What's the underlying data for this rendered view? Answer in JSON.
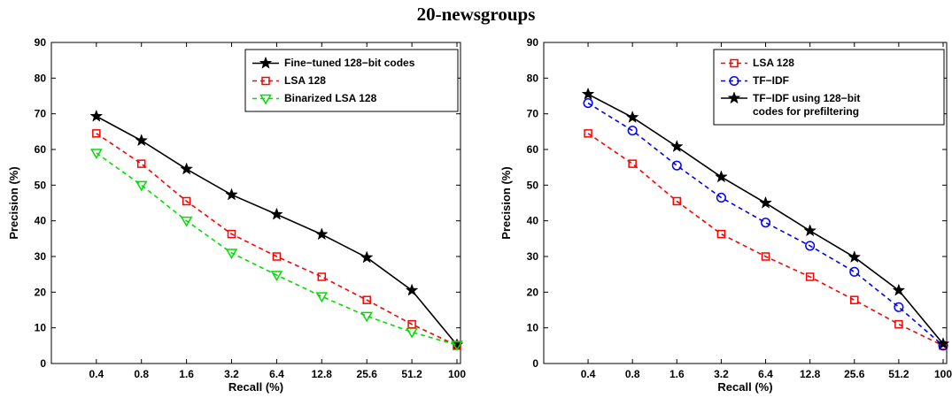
{
  "title": "20-newsgroups",
  "chart_data": [
    {
      "type": "line",
      "xlabel": "Recall (%)",
      "ylabel": "Precision (%)",
      "categories": [
        "0.4",
        "0.8",
        "1.6",
        "3.2",
        "6.4",
        "12.8",
        "25.6",
        "51.2",
        "100"
      ],
      "ylim": [
        0,
        90
      ],
      "yticks": [
        0,
        10,
        20,
        30,
        40,
        50,
        60,
        70,
        80,
        90
      ],
      "grid": false,
      "legend": "top-right",
      "legend_entries": [
        "Fine−tuned 128−bit codes",
        "LSA 128",
        "Binarized LSA 128"
      ],
      "series": [
        {
          "name": "Fine−tuned 128−bit codes",
          "color": "#000000",
          "dash": "solid",
          "marker": "star",
          "values": [
            69.3,
            62.5,
            54.5,
            47.3,
            41.8,
            36.2,
            29.7,
            20.5,
            5.2
          ]
        },
        {
          "name": "LSA 128",
          "color": "#ff0000",
          "dash": "dashed",
          "marker": "square",
          "values": [
            64.5,
            56.0,
            45.5,
            36.3,
            30.0,
            24.3,
            17.8,
            11.0,
            5.0
          ]
        },
        {
          "name": "Binarized LSA 128",
          "color": "#00dd00",
          "dash": "dashed",
          "marker": "triangle-down",
          "values": [
            59.0,
            50.0,
            40.0,
            31.0,
            24.8,
            18.8,
            13.3,
            8.8,
            5.2
          ]
        }
      ]
    },
    {
      "type": "line",
      "xlabel": "Recall (%)",
      "ylabel": "Precision (%)",
      "categories": [
        "0.4",
        "0.8",
        "1.6",
        "3.2",
        "6.4",
        "12.8",
        "25.6",
        "51.2",
        "100"
      ],
      "ylim": [
        0,
        90
      ],
      "yticks": [
        0,
        10,
        20,
        30,
        40,
        50,
        60,
        70,
        80,
        90
      ],
      "grid": false,
      "legend": "top-right",
      "legend_entries": [
        "LSA 128",
        "TF−IDF",
        "TF−IDF using 128−bit codes for prefiltering"
      ],
      "series": [
        {
          "name": "LSA 128",
          "color": "#ff0000",
          "dash": "dashed",
          "marker": "square",
          "values": [
            64.5,
            56.0,
            45.5,
            36.3,
            30.0,
            24.3,
            17.8,
            11.0,
            5.0
          ]
        },
        {
          "name": "TF−IDF",
          "color": "#0000ff",
          "dash": "dashed",
          "marker": "circle",
          "values": [
            73.0,
            65.3,
            55.5,
            46.5,
            39.5,
            33.0,
            25.7,
            15.8,
            5.0
          ]
        },
        {
          "name": "TF−IDF using 128−bit codes for prefiltering",
          "color": "#000000",
          "dash": "solid",
          "marker": "star",
          "values": [
            75.5,
            69.0,
            60.8,
            52.3,
            45.0,
            37.2,
            29.8,
            20.5,
            5.5
          ]
        }
      ]
    }
  ],
  "legend_lines": [
    [
      [
        "Fine−tuned 128−bit codes"
      ],
      [
        "LSA 128"
      ],
      [
        "Binarized LSA 128"
      ]
    ],
    [
      [
        "LSA 128"
      ],
      [
        "TF−IDF"
      ],
      [
        "TF−IDF using 128−bit",
        "codes for prefiltering"
      ]
    ]
  ]
}
